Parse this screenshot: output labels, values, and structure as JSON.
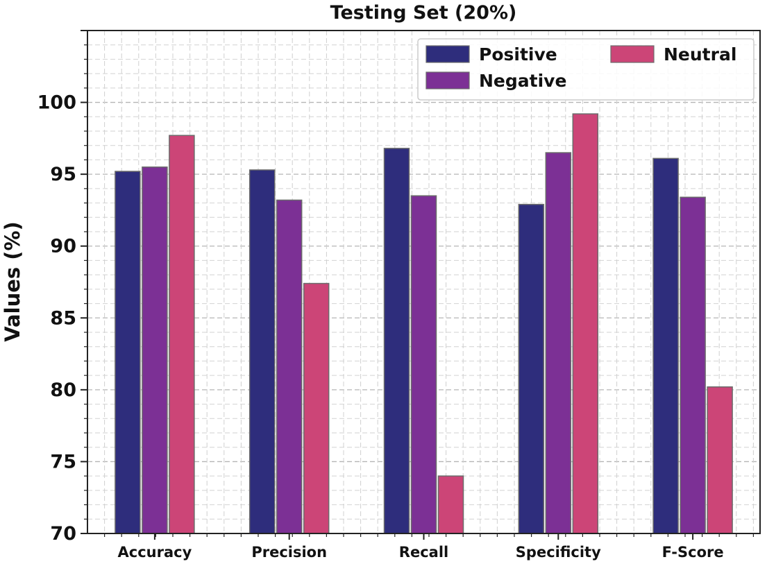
{
  "chart_data": {
    "type": "bar",
    "title": "Testing Set (20%)",
    "xlabel": "",
    "ylabel": "Values (%)",
    "ylim": [
      70,
      105
    ],
    "yticks": [
      70,
      75,
      80,
      85,
      90,
      95,
      100
    ],
    "grid": true,
    "legend_position": "top-right",
    "categories": [
      "Accuracy",
      "Precision",
      "Recall",
      "Specificity",
      "F-Score"
    ],
    "series": [
      {
        "name": "Positive",
        "color": "#2e2d7c",
        "values": [
          95.2,
          95.3,
          96.8,
          92.9,
          96.1
        ]
      },
      {
        "name": "Negative",
        "color": "#7c3095",
        "values": [
          95.5,
          93.2,
          93.5,
          96.5,
          93.4
        ]
      },
      {
        "name": "Neutral",
        "color": "#cc4577",
        "values": [
          97.7,
          87.4,
          74.0,
          99.2,
          80.2
        ]
      }
    ]
  }
}
